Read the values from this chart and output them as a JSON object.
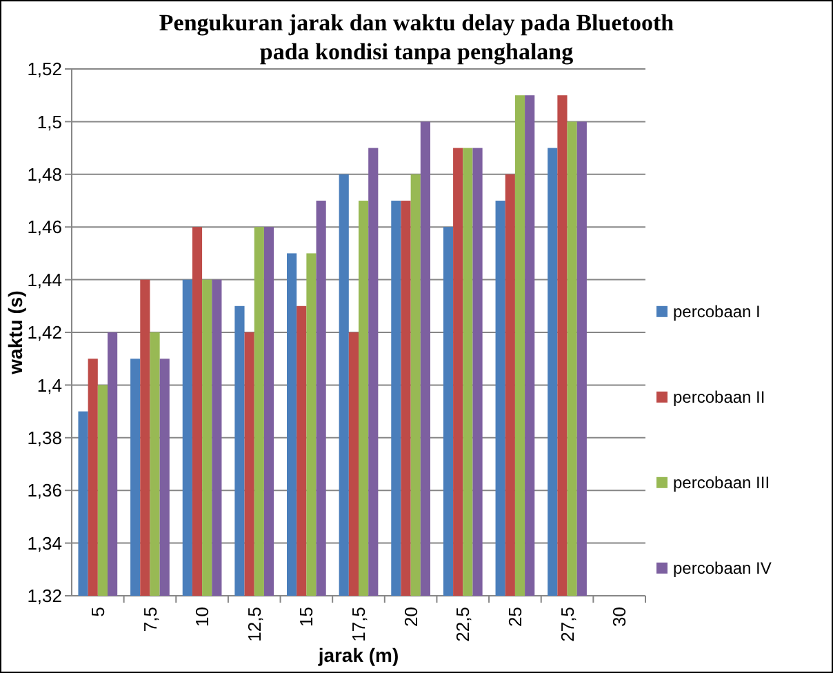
{
  "chart_data": {
    "type": "bar",
    "title": "Pengukuran jarak dan waktu delay pada Bluetooth pada kondisi tanpa penghalang",
    "xlabel": "jarak (m)",
    "ylabel": "waktu (s)",
    "categories": [
      "5",
      "7,5",
      "10",
      "12,5",
      "15",
      "17,5",
      "20",
      "22,5",
      "25",
      "27,5",
      "30"
    ],
    "series": [
      {
        "name": "percobaan I",
        "color": "#4a7ebb",
        "values": [
          1.39,
          1.41,
          1.44,
          1.43,
          1.45,
          1.48,
          1.47,
          1.46,
          1.47,
          1.49,
          null
        ]
      },
      {
        "name": "percobaan II",
        "color": "#be4b48",
        "values": [
          1.41,
          1.44,
          1.46,
          1.42,
          1.43,
          1.42,
          1.47,
          1.49,
          1.48,
          1.51,
          null
        ]
      },
      {
        "name": "percobaan III",
        "color": "#98b954",
        "values": [
          1.4,
          1.42,
          1.44,
          1.46,
          1.45,
          1.47,
          1.48,
          1.49,
          1.51,
          1.5,
          null
        ]
      },
      {
        "name": "percobaan IV",
        "color": "#7d60a0",
        "values": [
          1.42,
          1.41,
          1.44,
          1.46,
          1.47,
          1.49,
          1.5,
          1.49,
          1.51,
          1.5,
          null
        ]
      }
    ],
    "ylim": [
      1.32,
      1.52
    ],
    "yticks": [
      {
        "value": 1.32,
        "label": "1,32"
      },
      {
        "value": 1.34,
        "label": "1,34"
      },
      {
        "value": 1.36,
        "label": "1,36"
      },
      {
        "value": 1.38,
        "label": "1,38"
      },
      {
        "value": 1.4,
        "label": "1,4"
      },
      {
        "value": 1.42,
        "label": "1,42"
      },
      {
        "value": 1.44,
        "label": "1,44"
      },
      {
        "value": 1.46,
        "label": "1,46"
      },
      {
        "value": 1.48,
        "label": "1,48"
      },
      {
        "value": 1.5,
        "label": "1,5"
      },
      {
        "value": 1.52,
        "label": "1,52"
      }
    ],
    "grid": "y",
    "legend": "right"
  }
}
